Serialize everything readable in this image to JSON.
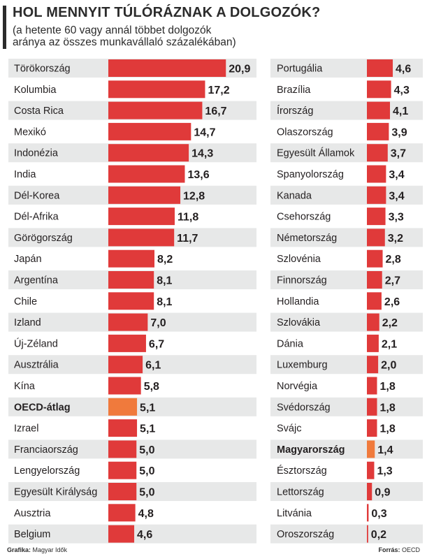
{
  "header": {
    "title": "HOL MENNYIT TÚLÓRÁZNAK A DOLGOZÓK?",
    "subtitle": "(a hetente 60 vagy annál többet dolgozók aránya az összes munkavállaló százalékában)"
  },
  "footer": {
    "credit_label": "Grafika:",
    "credit_value": "Magyar Idők",
    "source_label": "Forrás:",
    "source_value": "OECD"
  },
  "colors": {
    "bar": "#e03a3a",
    "highlight": "#f07a3c",
    "row_shade": "#e7e8e8",
    "text": "#231f20"
  },
  "chart_data": [
    {
      "type": "bar",
      "orientation": "horizontal",
      "categories": [
        "Törökország",
        "Kolumbia",
        "Costa Rica",
        "Mexikó",
        "Indonézia",
        "India",
        "Dél-Korea",
        "Dél-Afrika",
        "Görögország",
        "Japán",
        "Argentína",
        "Chile",
        "Izland",
        "Új-Zéland",
        "Ausztrália",
        "Kína",
        "OECD-átlag",
        "Izrael",
        "Franciaország",
        "Lengyelország",
        "Egyesült Királyság",
        "Ausztria",
        "Belgium"
      ],
      "values": [
        20.9,
        17.2,
        16.7,
        14.7,
        14.3,
        13.6,
        12.8,
        11.8,
        11.7,
        8.2,
        8.1,
        8.1,
        7.0,
        6.7,
        6.1,
        5.8,
        5.1,
        5.1,
        5.0,
        5.0,
        5.0,
        4.8,
        4.6
      ],
      "value_labels": [
        "20,9",
        "17,2",
        "16,7",
        "14,7",
        "14,3",
        "13,6",
        "12,8",
        "11,8",
        "11,7",
        "8,2",
        "8,1",
        "8,1",
        "7,0",
        "6,7",
        "6,1",
        "5,8",
        "5,1",
        "5,1",
        "5,0",
        "5,0",
        "5,0",
        "4,8",
        "4,6"
      ],
      "highlight": [
        "OECD-átlag"
      ]
    },
    {
      "type": "bar",
      "orientation": "horizontal",
      "categories": [
        "Portugália",
        "Brazília",
        "Írország",
        "Olaszország",
        "Egyesült Államok",
        "Spanyolország",
        "Kanada",
        "Csehország",
        "Németország",
        "Szlovénia",
        "Finnország",
        "Hollandia",
        "Szlovákia",
        "Dánia",
        "Luxemburg",
        "Norvégia",
        "Svédország",
        "Svájc",
        "Magyarország",
        "Észtország",
        "Lettország",
        "Litvánia",
        "Oroszország"
      ],
      "values": [
        4.6,
        4.3,
        4.1,
        3.9,
        3.7,
        3.4,
        3.4,
        3.3,
        3.2,
        2.8,
        2.7,
        2.6,
        2.2,
        2.1,
        2.0,
        1.8,
        1.8,
        1.8,
        1.4,
        1.3,
        0.9,
        0.3,
        0.2
      ],
      "value_labels": [
        "4,6",
        "4,3",
        "4,1",
        "3,9",
        "3,7",
        "3,4",
        "3,4",
        "3,3",
        "3,2",
        "2,8",
        "2,7",
        "2,6",
        "2,2",
        "2,1",
        "2,0",
        "1,8",
        "1,8",
        "1,8",
        "1,4",
        "1,3",
        "0,9",
        "0,3",
        "0,2"
      ],
      "highlight": [
        "Magyarország"
      ]
    }
  ]
}
